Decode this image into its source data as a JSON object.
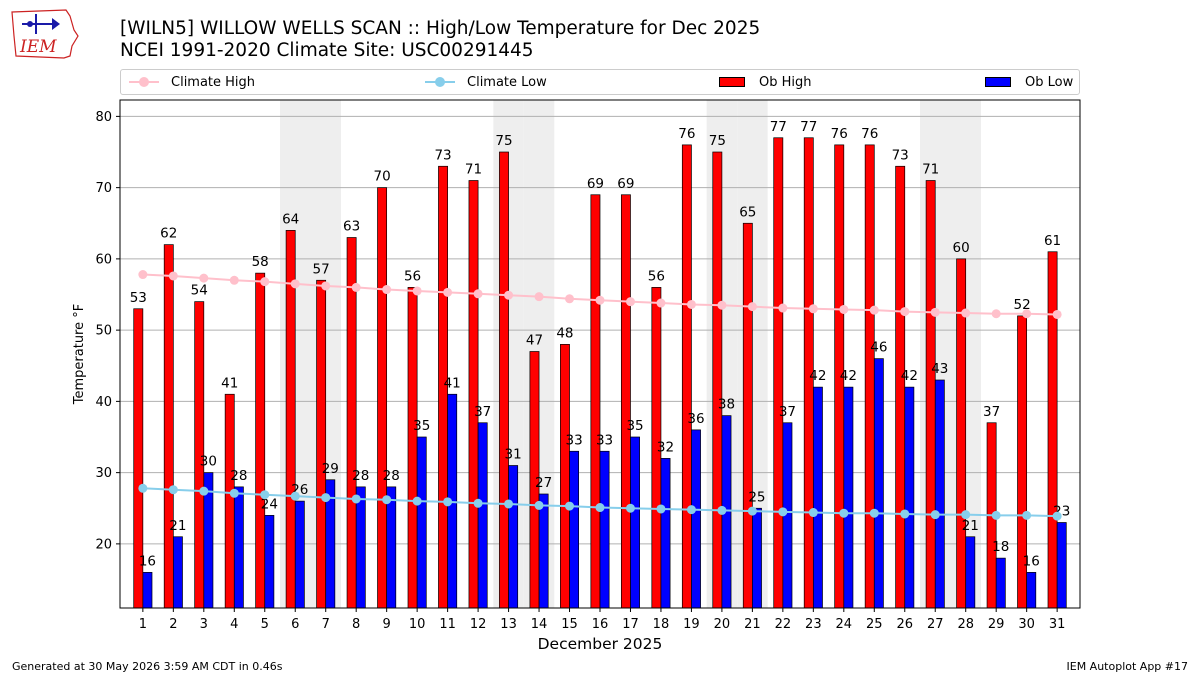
{
  "header": {
    "logo_text": "IEM",
    "title_line1": "[WILN5] WILLOW WELLS SCAN :: High/Low Temperature for Dec 2025",
    "title_line2": "NCEI 1991-2020 Climate Site: USC00291445"
  },
  "footer": {
    "left": "Generated at 30 May 2026 3:59 AM CDT in 0.46s",
    "right": "IEM Autoplot App #17"
  },
  "colors": {
    "ob_high": "#ff0000",
    "ob_low": "#0000ff",
    "climate_high": "#ffc0cb",
    "climate_low": "#87ceeb",
    "weekend_shade": "#eeeeee",
    "grid": "#b0b0b0"
  },
  "chart_data": {
    "type": "bar",
    "xlabel": "December 2025",
    "ylabel": "Temperature °F",
    "ylim": [
      11,
      82.3
    ],
    "yticks": [
      20,
      30,
      40,
      50,
      60,
      70,
      80
    ],
    "grid": true,
    "legend_position": "top",
    "categories": [
      "1",
      "2",
      "3",
      "4",
      "5",
      "6",
      "7",
      "8",
      "9",
      "10",
      "11",
      "12",
      "13",
      "14",
      "15",
      "16",
      "17",
      "18",
      "19",
      "20",
      "21",
      "22",
      "23",
      "24",
      "25",
      "26",
      "27",
      "28",
      "29",
      "30",
      "31"
    ],
    "shaded_days": [
      6,
      7,
      13,
      14,
      20,
      21,
      27,
      28
    ],
    "series": [
      {
        "name": "Climate High",
        "kind": "line",
        "values": [
          57.8,
          57.6,
          57.3,
          57.0,
          56.8,
          56.5,
          56.2,
          56.0,
          55.7,
          55.5,
          55.3,
          55.1,
          54.9,
          54.7,
          54.4,
          54.2,
          54.0,
          53.8,
          53.6,
          53.5,
          53.3,
          53.1,
          53.0,
          52.9,
          52.8,
          52.6,
          52.5,
          52.4,
          52.3,
          52.3,
          52.2
        ]
      },
      {
        "name": "Climate Low",
        "kind": "line",
        "values": [
          27.8,
          27.6,
          27.4,
          27.1,
          26.9,
          26.7,
          26.5,
          26.3,
          26.2,
          26.0,
          25.9,
          25.7,
          25.6,
          25.4,
          25.3,
          25.1,
          25.0,
          24.9,
          24.8,
          24.7,
          24.6,
          24.5,
          24.4,
          24.3,
          24.3,
          24.2,
          24.1,
          24.1,
          24.0,
          24.0,
          23.9
        ]
      },
      {
        "name": "Ob High",
        "kind": "bar",
        "values": [
          53,
          62,
          54,
          41,
          58,
          64,
          57,
          63,
          70,
          56,
          73,
          71,
          75,
          47,
          48,
          69,
          69,
          56,
          76,
          75,
          65,
          77,
          77,
          76,
          76,
          73,
          71,
          60,
          37,
          52,
          61
        ]
      },
      {
        "name": "Ob Low",
        "kind": "bar",
        "values": [
          16,
          21,
          30,
          28,
          24,
          26,
          29,
          28,
          28,
          35,
          41,
          37,
          31,
          27,
          33,
          33,
          35,
          32,
          36,
          38,
          25,
          37,
          42,
          42,
          46,
          42,
          43,
          21,
          18,
          16,
          23
        ]
      }
    ]
  }
}
